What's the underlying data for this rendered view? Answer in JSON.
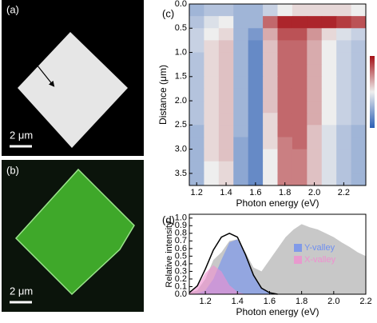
{
  "panel_labels": [
    "(a)",
    "(b)",
    "(c)",
    "(d)"
  ],
  "images": [
    {
      "scale_bar": "2 μm"
    },
    {
      "scale_bar": "2 μm"
    }
  ],
  "chart_data": [
    {
      "type": "heatmap",
      "xlabel": "Photon energy (eV)",
      "ylabel": "Distance (μm)",
      "xlim": [
        1.15,
        2.35
      ],
      "ylim": [
        0,
        3.75
      ],
      "y_inverted": true,
      "xticks": [
        1.2,
        1.4,
        1.6,
        1.8,
        {
          "value": 2,
          "label": "2.0"
        },
        2.2
      ],
      "yticks": [
        {
          "value": 0,
          "label": "0.0"
        },
        0.5,
        {
          "value": 1,
          "label": "1.0"
        },
        1.5,
        {
          "value": 2,
          "label": "2.0"
        },
        2.5,
        {
          "value": 3,
          "label": "3.0"
        },
        3.5
      ],
      "colormap": [
        "#2c5fb5",
        "#eeeeee",
        "#a50f15"
      ],
      "colorbar": true,
      "x": [
        1.15,
        1.25,
        1.35,
        1.45,
        1.55,
        1.65,
        1.75,
        1.85,
        1.95,
        2.05,
        2.15,
        2.25
      ],
      "y": [
        0,
        0.25,
        0.5,
        0.75,
        1,
        1.25,
        1.5,
        1.75,
        2,
        2.25,
        2.5,
        2.75,
        3,
        3.25,
        3.5
      ],
      "z": [
        [
          0.3,
          0.35,
          0.35,
          0.3,
          0.3,
          0.4,
          0.5,
          0.55,
          0.55,
          0.55,
          0.55,
          0.5
        ],
        [
          0.35,
          0.45,
          0.5,
          0.3,
          0.3,
          0.8,
          0.95,
          0.95,
          0.95,
          0.95,
          0.9,
          0.85
        ],
        [
          0.4,
          0.5,
          0.55,
          0.3,
          0.2,
          0.65,
          0.85,
          0.85,
          0.7,
          0.55,
          0.45,
          0.4
        ],
        [
          0.4,
          0.55,
          0.6,
          0.3,
          0.15,
          0.6,
          0.8,
          0.8,
          0.65,
          0.5,
          0.4,
          0.35
        ],
        [
          0.35,
          0.55,
          0.6,
          0.3,
          0.15,
          0.6,
          0.8,
          0.8,
          0.65,
          0.5,
          0.4,
          0.35
        ],
        [
          0.35,
          0.55,
          0.6,
          0.3,
          0.15,
          0.6,
          0.8,
          0.8,
          0.65,
          0.5,
          0.4,
          0.35
        ],
        [
          0.35,
          0.55,
          0.6,
          0.3,
          0.15,
          0.6,
          0.8,
          0.8,
          0.65,
          0.5,
          0.4,
          0.35
        ],
        [
          0.35,
          0.55,
          0.6,
          0.3,
          0.15,
          0.6,
          0.8,
          0.8,
          0.65,
          0.5,
          0.4,
          0.35
        ],
        [
          0.35,
          0.55,
          0.6,
          0.3,
          0.15,
          0.6,
          0.8,
          0.8,
          0.65,
          0.5,
          0.4,
          0.35
        ],
        [
          0.35,
          0.55,
          0.6,
          0.3,
          0.15,
          0.55,
          0.8,
          0.8,
          0.65,
          0.5,
          0.4,
          0.35
        ],
        [
          0.3,
          0.55,
          0.6,
          0.3,
          0.15,
          0.55,
          0.8,
          0.8,
          0.6,
          0.45,
          0.35,
          0.3
        ],
        [
          0.3,
          0.55,
          0.6,
          0.25,
          0.15,
          0.55,
          0.75,
          0.8,
          0.6,
          0.45,
          0.35,
          0.3
        ],
        [
          0.3,
          0.55,
          0.6,
          0.25,
          0.15,
          0.5,
          0.75,
          0.75,
          0.6,
          0.45,
          0.35,
          0.3
        ],
        [
          0.3,
          0.5,
          0.55,
          0.25,
          0.15,
          0.5,
          0.75,
          0.75,
          0.6,
          0.45,
          0.35,
          0.3
        ],
        [
          0.3,
          0.5,
          0.55,
          0.25,
          0.15,
          0.5,
          0.75,
          0.75,
          0.6,
          0.45,
          0.35,
          0.3
        ]
      ]
    },
    {
      "type": "area",
      "xlabel": "Photon energy (eV)",
      "ylabel": "Relative intensity",
      "xlim": [
        1.1,
        2.2
      ],
      "ylim": [
        0,
        1.05
      ],
      "xticks": [
        1.2,
        1.4,
        1.6,
        1.8,
        {
          "value": 2,
          "label": "2.0"
        },
        2.2
      ],
      "yticks": [
        {
          "value": 0,
          "label": "0.0"
        },
        0.1,
        0.2,
        0.3,
        0.4,
        0.5,
        0.6,
        0.7,
        0.8,
        0.9,
        {
          "value": 1,
          "label": "1.0"
        }
      ],
      "legend": "center right",
      "x": [
        1.1,
        1.15,
        1.2,
        1.25,
        1.3,
        1.35,
        1.4,
        1.45,
        1.5,
        1.55,
        1.6,
        1.65,
        1.7,
        1.75,
        1.8,
        1.85,
        1.9,
        1.95,
        2.0,
        2.05,
        2.1,
        2.15,
        2.2
      ],
      "series": [
        {
          "color": "#c8c8c8",
          "fill": true,
          "values": [
            0.02,
            0.05,
            0.2,
            0.45,
            0.55,
            0.7,
            0.72,
            0.55,
            0.35,
            0.3,
            0.45,
            0.6,
            0.75,
            0.85,
            0.92,
            0.88,
            0.85,
            0.8,
            0.75,
            0.68,
            0.62,
            0.55,
            0.5
          ]
        },
        {
          "name": "Y-valley",
          "color": "#6f8ff0",
          "fill": true,
          "values": [
            0,
            0.01,
            0.05,
            0.2,
            0.45,
            0.68,
            0.72,
            0.52,
            0.25,
            0.08,
            0.02,
            0,
            null,
            null,
            null,
            null,
            null,
            null,
            null,
            null,
            null,
            null,
            null
          ]
        },
        {
          "name": "X-valley",
          "color": "#f08fd0",
          "fill": true,
          "values": [
            0.02,
            0.1,
            0.28,
            0.38,
            0.3,
            0.12,
            0.03,
            0,
            null,
            null,
            null,
            null,
            null,
            null,
            null,
            null,
            null,
            null,
            null,
            null,
            null,
            null,
            null
          ]
        },
        {
          "color": "#000000",
          "fill": false,
          "values": [
            0.02,
            0.11,
            0.33,
            0.58,
            0.75,
            0.8,
            0.75,
            0.52,
            0.25,
            0.08,
            0.02,
            0,
            null,
            null,
            null,
            null,
            null,
            null,
            null,
            null,
            null,
            null,
            null
          ]
        }
      ]
    }
  ]
}
